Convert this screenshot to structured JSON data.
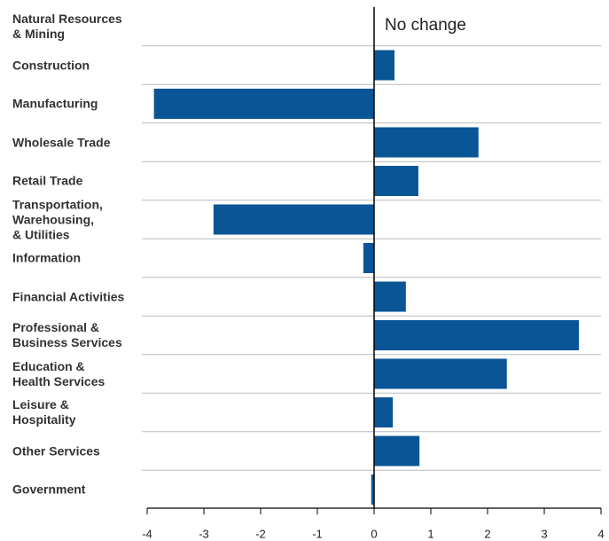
{
  "chart_data": {
    "type": "bar",
    "orientation": "horizontal",
    "categories": [
      "Natural Resources\n& Mining",
      "Construction",
      "Manufacturing",
      "Wholesale Trade",
      "Retail Trade",
      "Transportation,\nWarehousing,\n& Utilities",
      "Information",
      "Financial Activities",
      "Professional &\nBusiness Services",
      "Education &\nHealth Services",
      "Leisure &\nHospitality",
      "Other Services",
      "Government"
    ],
    "values": [
      0,
      0.36,
      -3.88,
      1.84,
      0.78,
      -2.83,
      -0.19,
      0.56,
      3.61,
      2.34,
      0.33,
      0.8,
      -0.05
    ],
    "color": "#0a5596",
    "xlim": [
      -4,
      4
    ],
    "xticks": [
      -4,
      -3,
      -2,
      -1,
      0,
      1,
      2,
      3,
      4
    ],
    "annotation": "No change"
  }
}
